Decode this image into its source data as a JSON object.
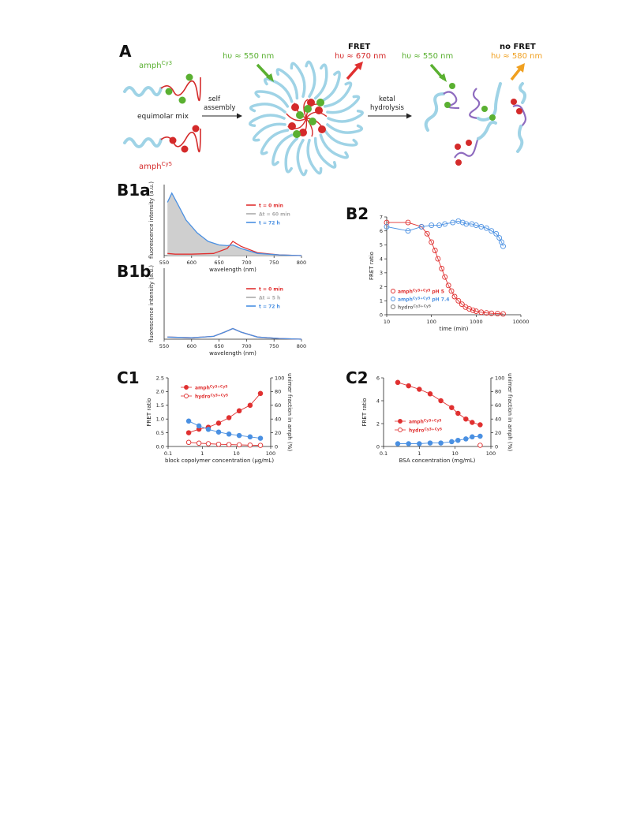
{
  "panel_labels": {
    "A": "A",
    "B1a": "B1a",
    "B1b": "B1b",
    "B2": "B2",
    "C1": "C1",
    "C2": "C2"
  },
  "schematic": {
    "amph_cy3_base": "amph",
    "amph_cy3_sup": "Cy3",
    "amph_cy5_base": "amph",
    "amph_cy5_sup": "Cy5",
    "equimolar": "equimolar mix",
    "self_assembly_1": "self",
    "self_assembly_2": "assembly",
    "ketal_1": "ketal",
    "ketal_2": "hydrolysis",
    "excitation_1": "hυ ≈ 550 nm",
    "fret_title": "FRET",
    "fret_emission": "hυ ≈ 670 nm",
    "excitation_2": "hυ ≈ 550 nm",
    "nofret_title": "no FRET",
    "nofret_emission": "hυ ≈ 580 nm",
    "colors": {
      "cy3": "#5ab031",
      "cy5": "#d42a2a",
      "polymer": "#9fd3e6",
      "orange": "#f0a020",
      "purple": "#8e6bbf"
    }
  },
  "chart_data": [
    {
      "id": "B1a",
      "type": "line",
      "xlabel": "wavelength (nm)",
      "ylabel": "fluorescence intensity (a.u.)",
      "xticks": [
        550,
        600,
        650,
        700,
        750,
        800
      ],
      "xlim": [
        550,
        800
      ],
      "series": [
        {
          "name": "t = 0 min",
          "color": "#e03030",
          "x": [
            556,
            570,
            600,
            640,
            665,
            675,
            690,
            720,
            760,
            800
          ],
          "y": [
            0.03,
            0.02,
            0.02,
            0.03,
            0.1,
            0.2,
            0.13,
            0.04,
            0.01,
            0.0
          ]
        },
        {
          "name": "Δt = 60 min",
          "color": "#aaaaaa",
          "x": [],
          "y": []
        },
        {
          "name": "t = 72 h",
          "color": "#4a90e2",
          "x": [
            556,
            564,
            575,
            590,
            610,
            630,
            650,
            665,
            675,
            690,
            720,
            760,
            800
          ],
          "y": [
            0.75,
            0.88,
            0.72,
            0.5,
            0.32,
            0.2,
            0.15,
            0.14,
            0.15,
            0.1,
            0.03,
            0.01,
            0.0
          ]
        }
      ]
    },
    {
      "id": "B1b",
      "type": "line",
      "xlabel": "wavelength (nm)",
      "ylabel": "fluorescence intensity (a.u.)",
      "xticks": [
        550,
        600,
        650,
        700,
        750,
        800
      ],
      "xlim": [
        550,
        800
      ],
      "series": [
        {
          "name": "t = 0 min",
          "color": "#e03030",
          "x": [
            556,
            600,
            640,
            660,
            675,
            690,
            720,
            760,
            800
          ],
          "y": [
            0.03,
            0.02,
            0.04,
            0.1,
            0.15,
            0.1,
            0.03,
            0.01,
            0.0
          ]
        },
        {
          "name": "Δt = 5 h",
          "color": "#aaaaaa",
          "x": [],
          "y": []
        },
        {
          "name": "t = 72 h",
          "color": "#4a90e2",
          "x": [
            556,
            600,
            640,
            660,
            675,
            690,
            720,
            760,
            800
          ],
          "y": [
            0.03,
            0.02,
            0.04,
            0.1,
            0.15,
            0.1,
            0.03,
            0.01,
            0.0
          ]
        }
      ]
    },
    {
      "id": "B2",
      "type": "scatter",
      "xlabel": "time (min)",
      "ylabel": "FRET ratio",
      "xscale": "log",
      "xlim": [
        10,
        10000
      ],
      "ylim": [
        0,
        7
      ],
      "xticks": [
        10,
        100,
        1000,
        10000
      ],
      "yticks": [
        0,
        1,
        2,
        3,
        4,
        5,
        6,
        7
      ],
      "series": [
        {
          "name_base": "amph",
          "name_sup": "Cy3+Cy5",
          "condition": "pH 5",
          "color": "#e03030",
          "x": [
            10,
            30,
            60,
            80,
            100,
            120,
            140,
            170,
            200,
            240,
            280,
            330,
            400,
            480,
            580,
            700,
            850,
            1000,
            1300,
            1700,
            2200,
            3000,
            4000
          ],
          "y": [
            6.6,
            6.6,
            6.3,
            5.8,
            5.2,
            4.6,
            4.0,
            3.3,
            2.7,
            2.1,
            1.7,
            1.3,
            1.0,
            0.75,
            0.55,
            0.42,
            0.32,
            0.25,
            0.18,
            0.13,
            0.1,
            0.08,
            0.06
          ]
        },
        {
          "name_base": "amph",
          "name_sup": "Cy3+Cy5",
          "condition": "pH 7.4",
          "color": "#4a90e2",
          "x": [
            10,
            30,
            60,
            100,
            150,
            200,
            300,
            400,
            500,
            600,
            800,
            1000,
            1300,
            1700,
            2200,
            2800,
            3300,
            3700,
            4000
          ],
          "y": [
            6.3,
            6.0,
            6.3,
            6.4,
            6.4,
            6.5,
            6.6,
            6.7,
            6.6,
            6.5,
            6.5,
            6.4,
            6.3,
            6.2,
            6.0,
            5.8,
            5.5,
            5.2,
            4.9
          ]
        },
        {
          "name_base": "hydro",
          "name_sup": "Cy3+Cy5",
          "condition": "",
          "color": "#777777",
          "x": [],
          "y": []
        }
      ]
    },
    {
      "id": "C1",
      "type": "scatter",
      "xlabel": "block copolymer concentration (μg/mL)",
      "ylabel": "FRET ratio",
      "ylabel_right": "unimer fraction in amph (%)",
      "xscale": "log",
      "xlim": [
        0.1,
        100
      ],
      "ylim": [
        0,
        2.5
      ],
      "ylim_right": [
        0,
        100
      ],
      "xticks": [
        0.1,
        1,
        10,
        100
      ],
      "yticks": [
        0.0,
        0.5,
        1.0,
        1.5,
        2.0,
        2.5
      ],
      "yticks_right": [
        0,
        20,
        40,
        60,
        80,
        100
      ],
      "series": [
        {
          "name_base": "amph",
          "name_sup": "Cy3+Cy5",
          "axis": "left",
          "color": "#e03030",
          "marker": "filled",
          "x": [
            0.4,
            0.8,
            1.5,
            3,
            6,
            12,
            25,
            50
          ],
          "y": [
            0.5,
            0.63,
            0.7,
            0.85,
            1.05,
            1.3,
            1.5,
            1.93
          ]
        },
        {
          "name_base": "hydro",
          "name_sup": "Cy3+Cy5",
          "axis": "left",
          "color": "#e03030",
          "marker": "open",
          "x": [
            0.4,
            0.8,
            1.5,
            3,
            6,
            12,
            25,
            50
          ],
          "y": [
            0.15,
            0.12,
            0.1,
            0.08,
            0.07,
            0.06,
            0.05,
            0.04
          ]
        },
        {
          "name": "",
          "axis": "right",
          "color": "#4a90e2",
          "marker": "filled",
          "x": [
            0.4,
            0.8,
            1.5,
            3,
            6,
            12,
            25,
            50
          ],
          "y": [
            37,
            30,
            25,
            21,
            18,
            16,
            14,
            12
          ]
        }
      ]
    },
    {
      "id": "C2",
      "type": "scatter",
      "xlabel": "BSA concentration (mg/mL)",
      "ylabel": "FRET ratio",
      "ylabel_right": "unimer fraction in amph (%)",
      "xscale": "log",
      "xlim": [
        0.1,
        100
      ],
      "ylim": [
        0,
        6
      ],
      "ylim_right": [
        0,
        100
      ],
      "xticks": [
        0.1,
        1,
        10,
        100
      ],
      "yticks": [
        0,
        2,
        4,
        6
      ],
      "yticks_right": [
        0,
        20,
        40,
        60,
        80,
        100
      ],
      "series": [
        {
          "name_base": "amph",
          "name_sup": "Cy3+Cy5",
          "axis": "left",
          "color": "#e03030",
          "marker": "filled",
          "x": [
            0.25,
            0.5,
            1,
            2,
            4,
            8,
            12,
            20,
            30,
            50
          ],
          "y": [
            5.6,
            5.3,
            5.0,
            4.6,
            4.0,
            3.4,
            2.9,
            2.4,
            2.1,
            1.9
          ]
        },
        {
          "name_base": "hydro",
          "name_sup": "Cy3+Cy5",
          "axis": "left",
          "color": "#e03030",
          "marker": "open",
          "x": [
            50
          ],
          "y": [
            0.1
          ]
        },
        {
          "name": "",
          "axis": "right",
          "color": "#4a90e2",
          "marker": "filled",
          "x": [
            0.25,
            0.5,
            1,
            2,
            4,
            8,
            12,
            20,
            30,
            50
          ],
          "y": [
            4,
            4,
            4,
            5,
            5,
            7,
            9,
            11,
            14,
            15
          ]
        }
      ]
    }
  ]
}
